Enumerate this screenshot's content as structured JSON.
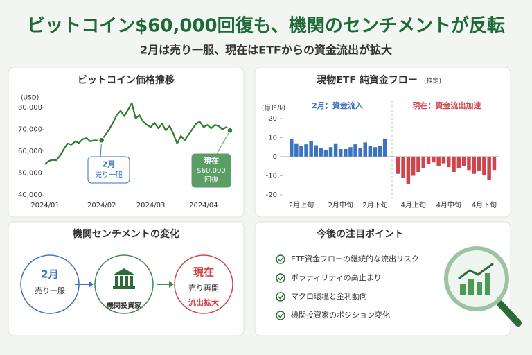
{
  "header": {
    "title": "ビットコイン$60,000回復も、機関のセンチメントが反転",
    "subtitle": "2月は売り一服、現在はETFからの資金流出が拡大"
  },
  "chart_data": [
    {
      "type": "line",
      "title": "ビットコイン価格推移",
      "y_label": "(USD)",
      "categories": [
        "2024/01",
        null,
        null,
        null,
        null,
        null,
        null,
        null,
        null,
        null,
        null,
        null,
        null,
        null,
        null,
        "2024/02",
        null,
        null,
        null,
        null,
        null,
        null,
        null,
        null,
        null,
        null,
        null,
        null,
        "2024/03",
        null,
        null,
        null,
        null,
        null,
        null,
        null,
        null,
        null,
        null,
        null,
        null,
        null,
        "2024/04",
        null,
        null,
        null,
        null,
        null,
        null,
        null
      ],
      "values": [
        54000,
        55500,
        56000,
        55800,
        58000,
        61000,
        63500,
        63000,
        64500,
        63800,
        65500,
        66000,
        64500,
        65000,
        64800,
        65000,
        67500,
        70000,
        73000,
        76500,
        78500,
        76000,
        79000,
        82000,
        75000,
        76500,
        73500,
        72000,
        71000,
        73000,
        70500,
        72500,
        69500,
        71500,
        68000,
        63500,
        67000,
        65000,
        67500,
        70000,
        72500,
        73500,
        71000,
        72000,
        70500,
        72000,
        71500,
        70000,
        71000,
        69500
      ],
      "color": "#2e7d32",
      "ylim": [
        40000,
        83000
      ],
      "yticks": [
        {
          "value": 40000,
          "label": "40,000"
        },
        {
          "value": 50000,
          "label": "50,000"
        },
        {
          "value": 60000,
          "label": "60,000"
        },
        {
          "value": 70000,
          "label": "70,000"
        },
        {
          "value": 80000,
          "label": "80,000"
        }
      ],
      "annotations": [
        [
          "2月",
          "売り一服"
        ],
        [
          "現在",
          "$60,000",
          "回復"
        ]
      ]
    },
    {
      "type": "bar",
      "title": "現物ETF 純資金フロー",
      "subtitle": "(推定)",
      "y_label": "(億ドル)",
      "categories": [
        null,
        null,
        "2月上旬",
        null,
        null,
        null,
        null,
        null,
        null,
        null,
        "2月中旬",
        null,
        null,
        null,
        null,
        null,
        null,
        "2月下旬",
        null,
        null,
        null,
        null,
        null,
        "4月上旬",
        null,
        null,
        null,
        null,
        null,
        null,
        "4月中旬",
        null,
        null,
        null,
        null,
        null,
        null,
        "4月下旬",
        null,
        null
      ],
      "series": [
        {
          "name": "2月：資金流入",
          "color": "#3a72c4",
          "values": [
            9.5,
            7,
            5.5,
            6.5,
            8,
            6,
            4.5,
            3.5,
            5,
            7,
            4,
            4,
            5,
            6.5,
            4.5,
            7.5,
            5.5,
            5,
            5.5,
            9.5,
            null,
            null,
            null,
            null,
            null,
            null,
            null,
            null,
            null,
            null,
            null,
            null,
            null,
            null,
            null,
            null,
            null,
            null,
            null,
            null
          ]
        },
        {
          "name": "現在：資金流出加速",
          "color": "#d0454c",
          "values": [
            null,
            null,
            null,
            null,
            null,
            null,
            null,
            null,
            null,
            null,
            null,
            null,
            null,
            null,
            null,
            null,
            null,
            null,
            null,
            null,
            -9,
            -11,
            -14.5,
            -10,
            -8,
            -6,
            -4,
            -3,
            -5,
            -3.5,
            -5.5,
            -8,
            -6,
            -5,
            -7,
            -9,
            -7.5,
            -9.5,
            -12,
            -7
          ]
        }
      ],
      "ylim": [
        -20,
        20
      ],
      "yticks": [
        -20,
        -10,
        0,
        10,
        20
      ]
    }
  ],
  "sentiment": {
    "title": "機関センチメントの変化",
    "nodes": [
      [
        "2月",
        "売り一服"
      ],
      [
        "機関投資家"
      ],
      [
        "現在",
        "売り再開",
        "流出拡大"
      ]
    ]
  },
  "outlook": {
    "title": "今後の注目ポイント",
    "items": [
      "ETF資金フローの継続的な流出リスク",
      "ボラティリティの高止まり",
      "マクロ環境と金利動向",
      "機関投資家のポジション変化"
    ]
  }
}
